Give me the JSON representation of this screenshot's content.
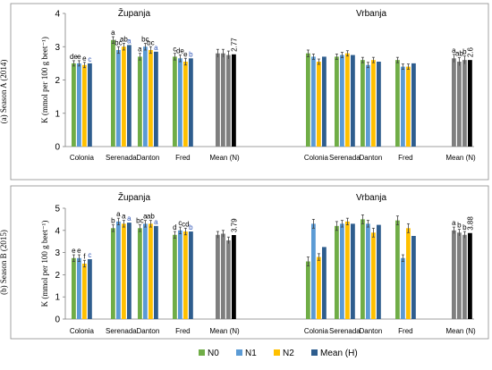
{
  "colors": {
    "N0": "#70ad47",
    "N1": "#5b9bd5",
    "N2": "#ffc000",
    "Mean (H)": "#2e5d8e",
    "mean_grey": "#7f7f7f",
    "overall": "#000000",
    "letters_blue": "#2f55b7"
  },
  "legend": {
    "position": "bottom",
    "items": [
      {
        "key": "N0",
        "label": "N0"
      },
      {
        "key": "N1",
        "label": "N1"
      },
      {
        "key": "N2",
        "label": "N2"
      },
      {
        "key": "Mean (H)",
        "label": "Mean (H)"
      }
    ]
  },
  "chart_data": [
    {
      "type": "bar",
      "row_label": "(a) Season A (2014)",
      "ylabel": "K (mmol per 100 g beet⁻¹)",
      "ylim": [
        0,
        4
      ],
      "yticks": [
        0,
        1,
        2,
        3,
        4
      ],
      "locations": [
        {
          "name": "Županja",
          "categories": [
            "Colonia",
            "Serenada",
            "Danton",
            "Fred"
          ],
          "series": [
            {
              "name": "N0",
              "values": [
                2.5,
                3.2,
                2.7,
                2.7
              ],
              "errors": [
                0.08,
                0.1,
                0.1,
                0.1
              ]
            },
            {
              "name": "N1",
              "values": [
                2.5,
                2.9,
                3.0,
                2.65
              ],
              "errors": [
                0.08,
                0.1,
                0.1,
                0.1
              ]
            },
            {
              "name": "N2",
              "values": [
                2.45,
                3.0,
                2.9,
                2.55
              ],
              "errors": [
                0.08,
                0.1,
                0.1,
                0.1
              ]
            },
            {
              "name": "Mean (H)",
              "values": [
                2.5,
                3.05,
                2.85,
                2.65
              ]
            }
          ],
          "letters": [
            {
              "series": "N0",
              "labels": [
                "de",
                "a",
                "a",
                "c"
              ]
            },
            {
              "series": "N1",
              "labels": [
                "e",
                "bc",
                "bc",
                "de"
              ]
            },
            {
              "series": "N2",
              "labels": [
                "e",
                "ab",
                "bc",
                "e"
              ]
            },
            {
              "series": "Mean (H)",
              "labels": [
                "c",
                "a",
                "a",
                "b"
              ]
            }
          ],
          "mean_n": {
            "values": [
              2.8,
              2.8,
              2.75
            ],
            "overall": 2.77,
            "label": "2.77"
          }
        },
        {
          "name": "Vrbanja",
          "categories": [
            "Colonia",
            "Serenada",
            "Danton",
            "Fred"
          ],
          "series": [
            {
              "name": "N0",
              "values": [
                2.8,
                2.7,
                2.6,
                2.6
              ],
              "errors": [
                0.1,
                0.08,
                0.08,
                0.08
              ]
            },
            {
              "name": "N1",
              "values": [
                2.7,
                2.75,
                2.45,
                2.4
              ],
              "errors": [
                0.08,
                0.08,
                0.08,
                0.08
              ]
            },
            {
              "name": "N2",
              "values": [
                2.55,
                2.8,
                2.6,
                2.4
              ],
              "errors": [
                0.08,
                0.08,
                0.08,
                0.08
              ]
            },
            {
              "name": "Mean (H)",
              "values": [
                2.7,
                2.75,
                2.55,
                2.5
              ]
            }
          ],
          "letters": [],
          "mean_n": {
            "values": [
              2.65,
              2.55,
              2.6
            ],
            "overall": 2.6,
            "label": "2.6",
            "letters": [
              "a",
              "ab",
              "b"
            ]
          }
        }
      ],
      "mean_label": "Mean (N)"
    },
    {
      "type": "bar",
      "row_label": "(b) Season B (2015)",
      "ylabel": "K (mmol per 100 g beet⁻¹)",
      "ylim": [
        0,
        5
      ],
      "yticks": [
        0,
        1,
        2,
        3,
        4,
        5
      ],
      "locations": [
        {
          "name": "Županja",
          "categories": [
            "Colonia",
            "Serenada",
            "Danton",
            "Fred"
          ],
          "series": [
            {
              "name": "N0",
              "values": [
                2.75,
                4.1,
                4.1,
                3.8
              ],
              "errors": [
                0.15,
                0.15,
                0.15,
                0.15
              ]
            },
            {
              "name": "N1",
              "values": [
                2.75,
                4.4,
                4.3,
                4.0
              ],
              "errors": [
                0.15,
                0.15,
                0.15,
                0.15
              ]
            },
            {
              "name": "N2",
              "values": [
                2.5,
                4.3,
                4.3,
                3.95
              ],
              "errors": [
                0.15,
                0.15,
                0.15,
                0.15
              ]
            },
            {
              "name": "Mean (H)",
              "values": [
                2.7,
                4.35,
                4.2,
                3.95
              ]
            }
          ],
          "letters": [
            {
              "series": "N0",
              "labels": [
                "e",
                "b",
                "bc",
                "d"
              ]
            },
            {
              "series": "N1",
              "labels": [
                "e",
                "a",
                "a",
                "c"
              ]
            },
            {
              "series": "N2",
              "labels": [
                "f",
                "a",
                "ab",
                "cd"
              ]
            },
            {
              "series": "Mean (H)",
              "labels": [
                "c",
                "a",
                "a",
                "b"
              ]
            }
          ],
          "mean_n": {
            "values": [
              3.8,
              3.85,
              3.55
            ],
            "overall": 3.79,
            "label": "3.79"
          }
        },
        {
          "name": "Vrbanja",
          "categories": [
            "Colonia",
            "Serenada",
            "Danton",
            "Fred"
          ],
          "series": [
            {
              "name": "N0",
              "values": [
                2.6,
                4.2,
                4.5,
                4.45
              ],
              "errors": [
                0.2,
                0.2,
                0.2,
                0.2
              ]
            },
            {
              "name": "N1",
              "values": [
                4.3,
                4.3,
                4.3,
                2.75
              ],
              "errors": [
                0.2,
                0.15,
                0.15,
                0.15
              ]
            },
            {
              "name": "N2",
              "values": [
                2.8,
                4.4,
                3.9,
                4.1
              ],
              "errors": [
                0.15,
                0.15,
                0.2,
                0.2
              ]
            },
            {
              "name": "Mean (H)",
              "values": [
                3.25,
                4.3,
                4.25,
                3.75
              ]
            }
          ],
          "letters": [],
          "mean_n": {
            "values": [
              4.0,
              3.9,
              3.8
            ],
            "overall": 3.88,
            "label": "3.88",
            "letters": [
              "a",
              "b",
              "b"
            ]
          }
        }
      ],
      "mean_label": "Mean (N)"
    }
  ]
}
